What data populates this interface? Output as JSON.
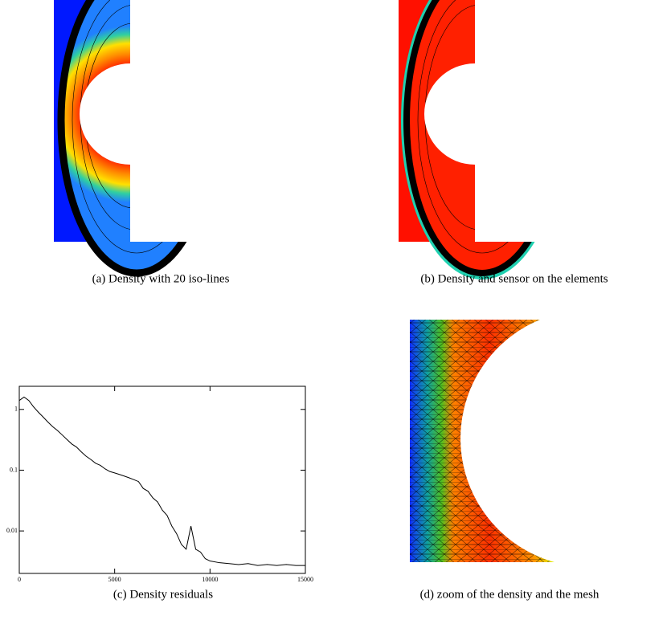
{
  "subfigures": [
    {
      "caption": "(a) Density with 20 iso-lines"
    },
    {
      "caption": "(b) Density and sensor on the elements"
    },
    {
      "caption": "(c) Density residuals"
    },
    {
      "caption": "(d) zoom of the density and the mesh"
    }
  ],
  "chart_data": {
    "type": "line",
    "x": [
      0,
      250,
      500,
      750,
      1000,
      1250,
      1500,
      1750,
      2000,
      2250,
      2500,
      2750,
      3000,
      3250,
      3500,
      3750,
      4000,
      4250,
      4500,
      4750,
      5000,
      5250,
      5500,
      5750,
      6000,
      6250,
      6500,
      6750,
      7000,
      7250,
      7500,
      7750,
      8000,
      8250,
      8500,
      8750,
      9000,
      9250,
      9500,
      9750,
      10000,
      10500,
      11000,
      11500,
      12000,
      12500,
      13000,
      13500,
      14000,
      14500,
      15000
    ],
    "values": [
      1.4,
      1.6,
      1.4,
      1.1,
      0.9,
      0.75,
      0.62,
      0.52,
      0.45,
      0.38,
      0.32,
      0.27,
      0.24,
      0.2,
      0.17,
      0.15,
      0.13,
      0.12,
      0.105,
      0.095,
      0.09,
      0.085,
      0.08,
      0.075,
      0.07,
      0.065,
      0.05,
      0.045,
      0.035,
      0.03,
      0.022,
      0.018,
      0.012,
      0.009,
      0.006,
      0.005,
      0.012,
      0.005,
      0.0045,
      0.0035,
      0.0032,
      0.003,
      0.0029,
      0.0028,
      0.0029,
      0.0027,
      0.0028,
      0.0027,
      0.0028,
      0.0027,
      0.0027
    ],
    "color": "#000000",
    "xlim": [
      0,
      15000
    ],
    "xticks": [
      0,
      5000,
      10000,
      15000
    ],
    "ylim": [
      0.002,
      2.4
    ],
    "yticks": [
      0.01,
      0.1,
      1
    ],
    "log_y": true
  }
}
